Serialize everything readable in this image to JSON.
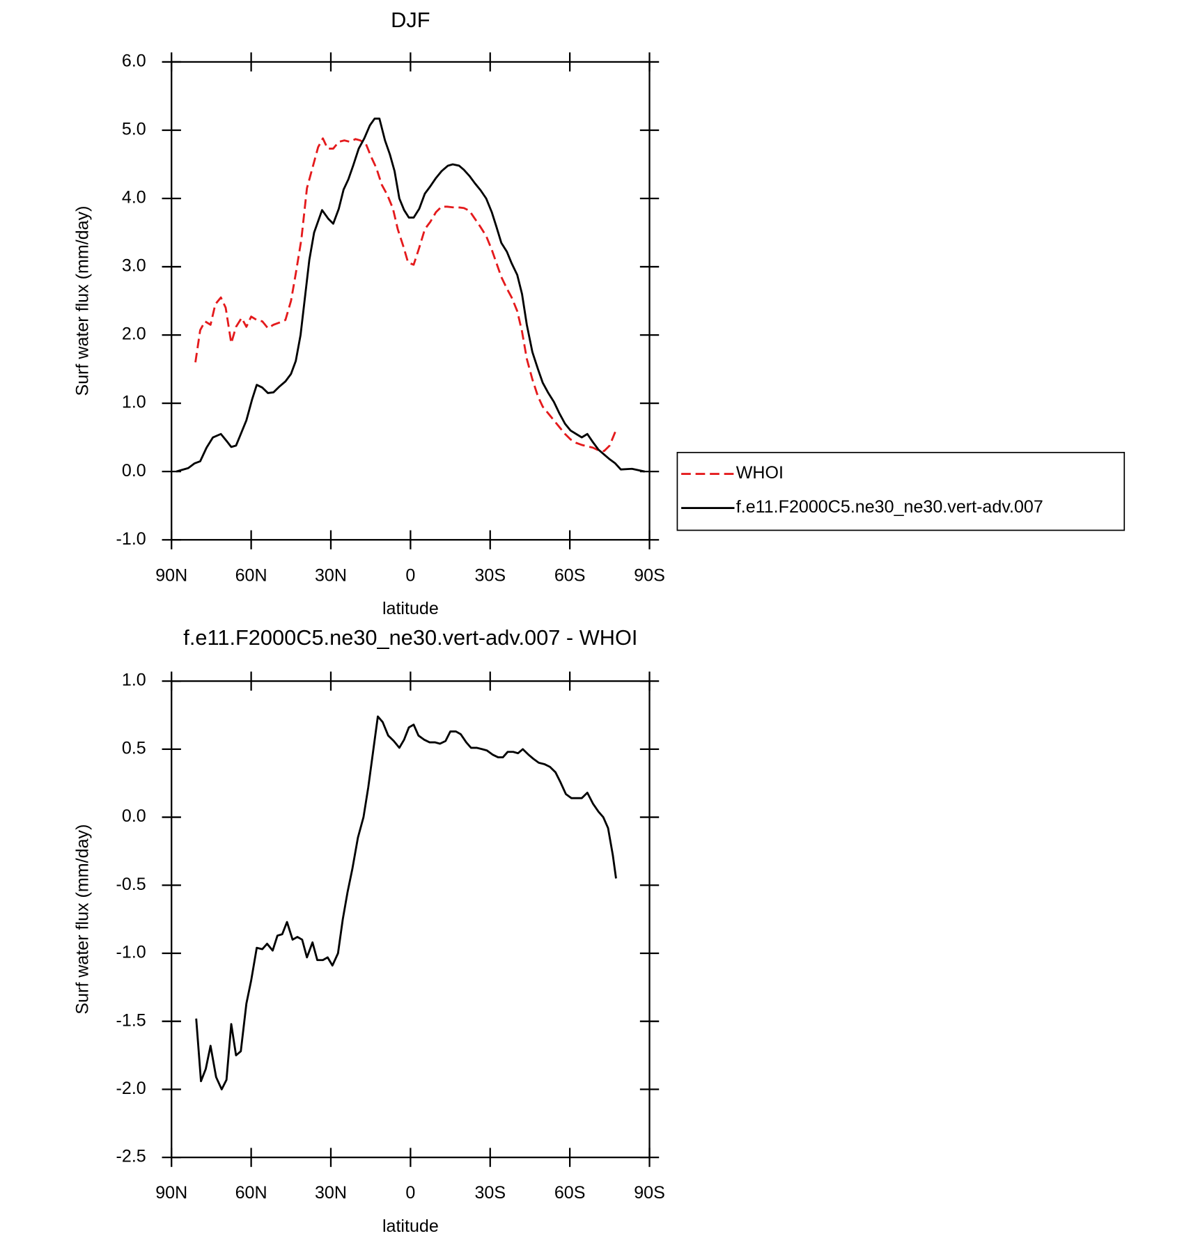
{
  "chart_data": [
    {
      "type": "line",
      "title": "DJF",
      "xlabel": "latitude",
      "ylabel": "Surf water flux (mm/day)",
      "xlim": [
        90,
        -90
      ],
      "xticks": [
        {
          "value": 90,
          "label": "90N"
        },
        {
          "value": 60,
          "label": "60N"
        },
        {
          "value": 30,
          "label": "30N"
        },
        0,
        {
          "value": -30,
          "label": "30S"
        },
        {
          "value": -60,
          "label": "60S"
        },
        {
          "value": -90,
          "label": "90S"
        }
      ],
      "ylim": [
        -1,
        6
      ],
      "yticks": [
        {
          "value": -1,
          "label": "-1.0"
        },
        {
          "value": 0,
          "label": "0.0"
        },
        {
          "value": 1,
          "label": "1.0"
        },
        {
          "value": 2,
          "label": "2.0"
        },
        {
          "value": 3,
          "label": "3.0"
        },
        {
          "value": 4,
          "label": "4.0"
        },
        {
          "value": 5,
          "label": "5.0"
        },
        {
          "value": 6,
          "label": "6.0"
        }
      ],
      "legend": "outside right",
      "series": [
        {
          "name": "WHOI",
          "color": "#e41a1c",
          "dashed": true,
          "x": [
            81,
            79.2,
            77.4,
            75.3,
            73.5,
            71.4,
            69.6,
            67.5,
            65.7,
            63.6,
            61.8,
            60,
            57.9,
            55.8,
            53.7,
            51.6,
            49.5,
            47.1,
            45,
            43.2,
            41.1,
            39,
            36.9,
            34.8,
            33,
            31.2,
            29.1,
            27,
            24.9,
            22.8,
            20.7,
            18.9,
            16.8,
            14.7,
            12.9,
            10.8,
            8.7,
            6.6,
            4.8,
            2.7,
            0.9,
            -1.2,
            -3.3,
            -5.4,
            -7.5,
            -9.6,
            -11.7,
            -13.8,
            -15.9,
            -18,
            -20.1,
            -22.2,
            -24.3,
            -26.4,
            -28.5,
            -30.6,
            -32.4,
            -34.2,
            -36.3,
            -38.1,
            -40.2,
            -42,
            -43.8,
            -45.9,
            -48,
            -49.8,
            -51.9,
            -54,
            -56.1,
            -58.2,
            -60.3,
            -62.4,
            -64.5,
            -66.6,
            -68.7,
            -70.8,
            -72.9,
            -75,
            -77.1
          ],
          "values": [
            1.6,
            2.07,
            2.2,
            2.15,
            2.45,
            2.55,
            2.4,
            1.88,
            2.12,
            2.25,
            2.12,
            2.27,
            2.22,
            2.2,
            2.1,
            2.15,
            2.18,
            2.22,
            2.5,
            2.9,
            3.4,
            4.15,
            4.45,
            4.75,
            4.88,
            4.73,
            4.73,
            4.83,
            4.85,
            4.83,
            4.87,
            4.85,
            4.8,
            4.6,
            4.45,
            4.2,
            4.05,
            3.85,
            3.55,
            3.3,
            3.06,
            3.03,
            3.28,
            3.55,
            3.66,
            3.8,
            3.88,
            3.88,
            3.87,
            3.87,
            3.86,
            3.82,
            3.7,
            3.58,
            3.45,
            3.25,
            3.05,
            2.85,
            2.68,
            2.55,
            2.35,
            2.05,
            1.65,
            1.35,
            1.1,
            0.95,
            0.85,
            0.75,
            0.65,
            0.55,
            0.47,
            0.42,
            0.39,
            0.37,
            0.35,
            0.31,
            0.3,
            0.38,
            0.58
          ]
        },
        {
          "name": "f.e11.F2000C5.ne30_ne30.vert-adv.007",
          "color": "#000000",
          "dashed": false,
          "x": [
            88.2,
            83.7,
            81.3,
            79.2,
            76.8,
            74.4,
            71.4,
            69.3,
            67.5,
            65.7,
            63.9,
            61.8,
            59.7,
            57.9,
            55.8,
            53.7,
            51.6,
            49.5,
            47.1,
            45,
            43.2,
            41.4,
            39.6,
            38.1,
            36.3,
            33.3,
            30.9,
            29.1,
            27,
            25.2,
            23.4,
            21.6,
            19.5,
            17.4,
            15.3,
            13.5,
            11.7,
            9.6,
            7.8,
            6,
            4.2,
            2.4,
            0.6,
            -1.2,
            -3.3,
            -5.4,
            -7.5,
            -9.6,
            -11.7,
            -14.1,
            -15.9,
            -18.3,
            -20.1,
            -22.2,
            -24.3,
            -26.4,
            -28.5,
            -30.6,
            -32.4,
            -34.2,
            -36.3,
            -38.1,
            -40.2,
            -42,
            -43.8,
            -45.9,
            -48,
            -49.8,
            -51.9,
            -54,
            -56.1,
            -58.2,
            -60.3,
            -62.4,
            -64.5,
            -66.6,
            -68.7,
            -70.8,
            -72.9,
            -75,
            -77.1,
            -79.2,
            -83.4,
            -88.2
          ],
          "values": [
            0,
            0.05,
            0.12,
            0.15,
            0.35,
            0.5,
            0.55,
            0.45,
            0.36,
            0.38,
            0.55,
            0.75,
            1.05,
            1.27,
            1.23,
            1.15,
            1.16,
            1.24,
            1.32,
            1.43,
            1.62,
            2,
            2.6,
            3.1,
            3.5,
            3.83,
            3.7,
            3.63,
            3.85,
            4.13,
            4.28,
            4.48,
            4.73,
            4.88,
            5.07,
            5.17,
            5.17,
            4.85,
            4.65,
            4.4,
            4,
            3.83,
            3.72,
            3.72,
            3.85,
            4.07,
            4.18,
            4.3,
            4.4,
            4.48,
            4.5,
            4.48,
            4.42,
            4.33,
            4.22,
            4.12,
            4,
            3.8,
            3.58,
            3.35,
            3.22,
            3.05,
            2.88,
            2.6,
            2.15,
            1.75,
            1.5,
            1.3,
            1.15,
            1.02,
            0.85,
            0.7,
            0.6,
            0.55,
            0.5,
            0.55,
            0.43,
            0.32,
            0.25,
            0.18,
            0.12,
            0.03,
            0.04,
            0
          ]
        }
      ]
    },
    {
      "type": "line",
      "title": "f.e11.F2000C5.ne30_ne30.vert-adv.007 - WHOI",
      "xlabel": "latitude",
      "ylabel": "Surf water flux (mm/day)",
      "xlim": [
        90,
        -90
      ],
      "xticks": [
        {
          "value": 90,
          "label": "90N"
        },
        {
          "value": 60,
          "label": "60N"
        },
        {
          "value": 30,
          "label": "30N"
        },
        0,
        {
          "value": -30,
          "label": "30S"
        },
        {
          "value": -60,
          "label": "60S"
        },
        {
          "value": -90,
          "label": "90S"
        }
      ],
      "ylim": [
        -2.5,
        1
      ],
      "yticks": [
        {
          "value": -2.5,
          "label": "-2.5"
        },
        {
          "value": -2,
          "label": "-2.0"
        },
        {
          "value": -1.5,
          "label": "-1.5"
        },
        {
          "value": -1,
          "label": "-1.0"
        },
        {
          "value": -0.5,
          "label": "-0.5"
        },
        {
          "value": 0,
          "label": "0.0"
        },
        {
          "value": 0.5,
          "label": "0.5"
        },
        {
          "value": 1,
          "label": "1.0"
        }
      ],
      "series": [
        {
          "color": "#000000",
          "dashed": false,
          "x": [
            80.7,
            78.9,
            77.1,
            75.3,
            73.2,
            71.1,
            69.3,
            67.5,
            65.7,
            63.9,
            61.8,
            60,
            57.9,
            55.8,
            54,
            51.9,
            50.1,
            48.3,
            46.5,
            44.4,
            42.6,
            40.8,
            39,
            36.9,
            35.1,
            33,
            31.2,
            29.4,
            27.3,
            25.5,
            23.7,
            21.9,
            19.8,
            17.7,
            15.9,
            14.1,
            12.3,
            10.5,
            8.4,
            6.3,
            4.2,
            2.4,
            0.6,
            -1.2,
            -3,
            -5.1,
            -7.2,
            -9.3,
            -11.1,
            -13.2,
            -15,
            -17.1,
            -18.9,
            -21,
            -22.8,
            -24.9,
            -27,
            -28.8,
            -30.9,
            -33,
            -34.8,
            -36.6,
            -38.7,
            -40.5,
            -42.3,
            -44.4,
            -46.2,
            -48.3,
            -50.4,
            -52.5,
            -54.6,
            -56.4,
            -58.5,
            -60.6,
            -62.7,
            -64.5,
            -66.6,
            -68.7,
            -70.8,
            -72.6,
            -74.4,
            -76.2,
            -77.4
          ],
          "values": [
            -1.48,
            -1.94,
            -1.85,
            -1.68,
            -1.91,
            -2,
            -1.93,
            -1.52,
            -1.75,
            -1.72,
            -1.37,
            -1.2,
            -0.96,
            -0.97,
            -0.93,
            -0.98,
            -0.87,
            -0.86,
            -0.77,
            -0.9,
            -0.88,
            -0.9,
            -1.03,
            -0.92,
            -1.05,
            -1.05,
            -1.03,
            -1.09,
            -1,
            -0.75,
            -0.55,
            -0.38,
            -0.15,
            0,
            0.22,
            0.48,
            0.74,
            0.7,
            0.6,
            0.56,
            0.51,
            0.57,
            0.66,
            0.68,
            0.6,
            0.57,
            0.55,
            0.55,
            0.54,
            0.56,
            0.63,
            0.63,
            0.61,
            0.55,
            0.51,
            0.51,
            0.5,
            0.49,
            0.46,
            0.44,
            0.44,
            0.48,
            0.48,
            0.47,
            0.5,
            0.46,
            0.43,
            0.4,
            0.39,
            0.37,
            0.33,
            0.26,
            0.17,
            0.14,
            0.14,
            0.14,
            0.18,
            0.1,
            0.04,
            0,
            -0.08,
            -0.28,
            -0.45
          ]
        }
      ]
    }
  ]
}
